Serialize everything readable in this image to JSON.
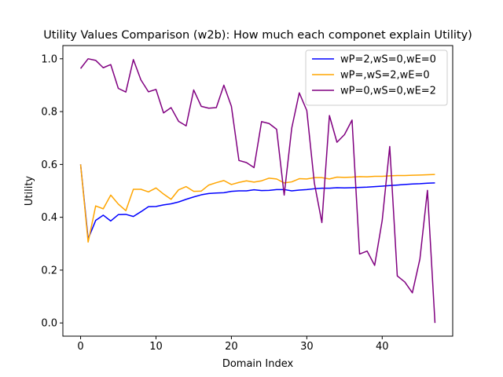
{
  "chart_data": {
    "type": "line",
    "title": "Utility Values Comparison (w2b): How much each componet explain Utility)",
    "xlabel": "Domain Index",
    "ylabel": "Utility",
    "xlim": [
      -2.35,
      49.35
    ],
    "ylim": [
      -0.05,
      1.05
    ],
    "xticks": [
      0,
      10,
      20,
      30,
      40
    ],
    "yticks": [
      0.0,
      0.2,
      0.4,
      0.6,
      0.8,
      1.0
    ],
    "grid": false,
    "legend_position": "upper right",
    "x": [
      0,
      1,
      2,
      3,
      4,
      5,
      6,
      7,
      8,
      9,
      10,
      11,
      12,
      13,
      14,
      15,
      16,
      17,
      18,
      19,
      20,
      21,
      22,
      23,
      24,
      25,
      26,
      27,
      28,
      29,
      30,
      31,
      32,
      33,
      34,
      35,
      36,
      37,
      38,
      39,
      40,
      41,
      42,
      43,
      44,
      45,
      46,
      47
    ],
    "series": [
      {
        "name": "wP=2,wS=0,wE=0",
        "color": "#0000ff",
        "values": [
          0.6,
          0.318,
          0.388,
          0.408,
          0.386,
          0.41,
          0.411,
          0.403,
          0.421,
          0.44,
          0.441,
          0.447,
          0.451,
          0.458,
          0.468,
          0.477,
          0.485,
          0.49,
          0.492,
          0.493,
          0.498,
          0.5,
          0.5,
          0.504,
          0.501,
          0.502,
          0.505,
          0.505,
          0.5,
          0.503,
          0.505,
          0.508,
          0.51,
          0.51,
          0.512,
          0.511,
          0.512,
          0.513,
          0.514,
          0.516,
          0.518,
          0.52,
          0.522,
          0.524,
          0.526,
          0.527,
          0.529,
          0.53
        ]
      },
      {
        "name": "wP=,wS=2,wE=0",
        "color": "#ffa500",
        "values": [
          0.6,
          0.306,
          0.443,
          0.432,
          0.484,
          0.45,
          0.425,
          0.506,
          0.506,
          0.496,
          0.511,
          0.488,
          0.468,
          0.504,
          0.516,
          0.498,
          0.499,
          0.522,
          0.531,
          0.539,
          0.524,
          0.532,
          0.538,
          0.533,
          0.538,
          0.548,
          0.545,
          0.53,
          0.534,
          0.546,
          0.545,
          0.55,
          0.55,
          0.545,
          0.552,
          0.551,
          0.552,
          0.554,
          0.553,
          0.555,
          0.555,
          0.557,
          0.558,
          0.558,
          0.559,
          0.56,
          0.561,
          0.562
        ]
      },
      {
        "name": "wP=0,wS=0,wE=2",
        "color": "#800080",
        "values": [
          0.963,
          1.0,
          0.994,
          0.966,
          0.978,
          0.888,
          0.874,
          0.997,
          0.92,
          0.875,
          0.884,
          0.795,
          0.815,
          0.763,
          0.746,
          0.882,
          0.82,
          0.813,
          0.815,
          0.9,
          0.82,
          0.615,
          0.607,
          0.588,
          0.762,
          0.755,
          0.733,
          0.484,
          0.737,
          0.871,
          0.804,
          0.53,
          0.38,
          0.785,
          0.684,
          0.713,
          0.768,
          0.261,
          0.272,
          0.218,
          0.388,
          0.668,
          0.178,
          0.155,
          0.114,
          0.242,
          0.502,
          0.0
        ]
      }
    ]
  }
}
